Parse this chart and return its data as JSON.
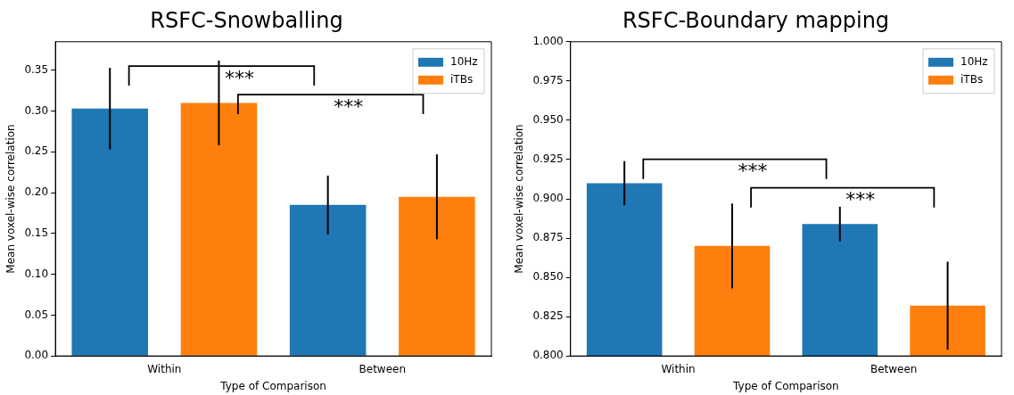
{
  "chart_data": [
    {
      "type": "bar",
      "title": "RSFC-Snowballing",
      "xlabel": "Type of Comparison",
      "ylabel": "Mean voxel-wise correlation",
      "categories": [
        "Within",
        "Between"
      ],
      "series": [
        {
          "name": "10Hz",
          "color": "#1f77b4",
          "values": [
            0.303,
            0.185
          ],
          "errors": [
            0.05,
            0.036
          ]
        },
        {
          "name": "iTBs",
          "color": "#ff7f0e",
          "values": [
            0.31,
            0.195
          ],
          "errors": [
            0.052,
            0.052
          ]
        }
      ],
      "ylim": [
        0,
        0.385
      ],
      "yticks": [
        {
          "value": 0,
          "label": "0.00"
        },
        {
          "value": 0.05,
          "label": "0.05"
        },
        {
          "value": 0.1,
          "label": "0.10"
        },
        {
          "value": 0.15,
          "label": "0.15"
        },
        {
          "value": 0.2,
          "label": "0.20"
        },
        {
          "value": 0.25,
          "label": "0.25"
        },
        {
          "value": 0.3,
          "label": "0.30"
        },
        {
          "value": 0.35,
          "label": "0.35"
        }
      ],
      "legend": "top right",
      "grid": false,
      "annotations": [
        "***",
        "***"
      ]
    },
    {
      "type": "bar",
      "title": "RSFC-Boundary mapping",
      "xlabel": "Type of Comparison",
      "ylabel": "Mean voxel-wise correlation",
      "categories": [
        "Within",
        "Between"
      ],
      "series": [
        {
          "name": "10Hz",
          "color": "#1f77b4",
          "values": [
            0.91,
            0.884
          ],
          "errors": [
            0.014,
            0.011
          ]
        },
        {
          "name": "iTBs",
          "color": "#ff7f0e",
          "values": [
            0.87,
            0.832
          ],
          "errors": [
            0.027,
            0.028
          ]
        }
      ],
      "ylim": [
        0.8,
        1.0
      ],
      "yticks": [
        {
          "value": 0.8,
          "label": "0.800"
        },
        {
          "value": 0.825,
          "label": "0.825"
        },
        {
          "value": 0.85,
          "label": "0.850"
        },
        {
          "value": 0.875,
          "label": "0.875"
        },
        {
          "value": 0.9,
          "label": "0.900"
        },
        {
          "value": 0.925,
          "label": "0.925"
        },
        {
          "value": 0.95,
          "label": "0.950"
        },
        {
          "value": 0.975,
          "label": "0.975"
        },
        {
          "value": 1.0,
          "label": "1.000"
        }
      ],
      "legend": "top right",
      "grid": false,
      "annotations": [
        "***",
        "***"
      ]
    }
  ]
}
